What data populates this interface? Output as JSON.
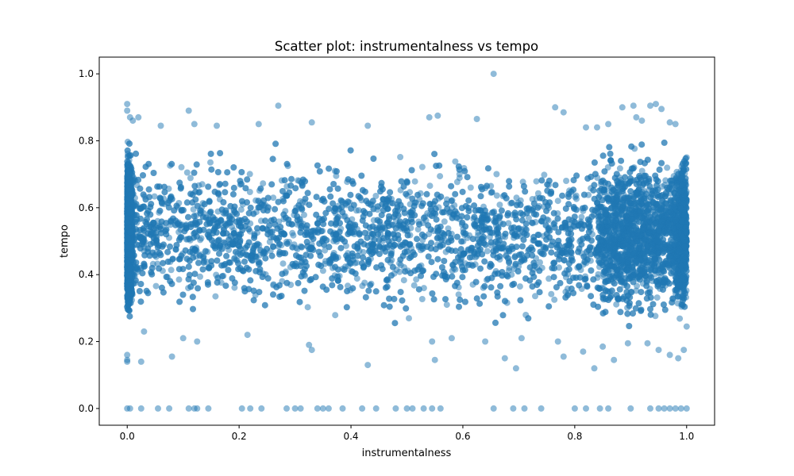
{
  "chart_data": {
    "type": "scatter",
    "title": "Scatter plot: instrumentalness vs tempo",
    "xlabel": "instrumentalness",
    "ylabel": "tempo",
    "xlim": [
      -0.05,
      1.05
    ],
    "ylim": [
      -0.05,
      1.05
    ],
    "xticks": [
      "0.0",
      "0.2",
      "0.4",
      "0.6",
      "0.8",
      "1.0"
    ],
    "yticks": [
      "0.0",
      "0.2",
      "0.4",
      "0.6",
      "0.8",
      "1.0"
    ],
    "grid": false,
    "legend": "none",
    "color": "#1f77b4",
    "alpha": 0.5,
    "series": [
      {
        "points": [
          [
            0.655,
            1.0
          ],
          [
            0.0,
            0.91
          ],
          [
            0.0,
            0.89
          ],
          [
            0.005,
            0.87
          ],
          [
            0.01,
            0.86
          ],
          [
            0.02,
            0.87
          ],
          [
            0.11,
            0.89
          ],
          [
            0.27,
            0.905
          ],
          [
            0.765,
            0.9
          ],
          [
            0.885,
            0.9
          ],
          [
            0.905,
            0.905
          ],
          [
            0.935,
            0.905
          ],
          [
            0.945,
            0.91
          ],
          [
            0.955,
            0.895
          ],
          [
            0.97,
            0.855
          ],
          [
            0.98,
            0.85
          ],
          [
            0.625,
            0.865
          ],
          [
            0.555,
            0.875
          ],
          [
            0.54,
            0.87
          ],
          [
            0.33,
            0.855
          ],
          [
            0.43,
            0.845
          ],
          [
            0.235,
            0.85
          ],
          [
            0.16,
            0.845
          ],
          [
            0.12,
            0.85
          ],
          [
            0.06,
            0.845
          ],
          [
            0.78,
            0.885
          ],
          [
            0.82,
            0.84
          ],
          [
            0.84,
            0.84
          ],
          [
            0.86,
            0.85
          ],
          [
            0.91,
            0.87
          ],
          [
            0.92,
            0.86
          ],
          [
            0.03,
            0.23
          ],
          [
            0.0,
            0.16
          ],
          [
            0.0,
            0.145
          ],
          [
            0.0,
            0.14
          ],
          [
            0.025,
            0.14
          ],
          [
            0.1,
            0.21
          ],
          [
            0.125,
            0.2
          ],
          [
            0.08,
            0.155
          ],
          [
            0.215,
            0.22
          ],
          [
            0.325,
            0.19
          ],
          [
            0.33,
            0.175
          ],
          [
            0.43,
            0.13
          ],
          [
            0.55,
            0.145
          ],
          [
            0.545,
            0.2
          ],
          [
            0.58,
            0.21
          ],
          [
            0.64,
            0.2
          ],
          [
            0.675,
            0.15
          ],
          [
            0.695,
            0.12
          ],
          [
            0.705,
            0.21
          ],
          [
            0.77,
            0.2
          ],
          [
            0.78,
            0.155
          ],
          [
            0.815,
            0.17
          ],
          [
            0.835,
            0.12
          ],
          [
            0.85,
            0.185
          ],
          [
            0.87,
            0.145
          ],
          [
            0.895,
            0.195
          ],
          [
            0.93,
            0.195
          ],
          [
            0.95,
            0.175
          ],
          [
            0.97,
            0.16
          ],
          [
            0.985,
            0.15
          ],
          [
            0.995,
            0.175
          ],
          [
            1.0,
            0.245
          ],
          [
            1.0,
            0.75
          ],
          [
            0.99,
            0.71
          ],
          [
            0.0,
            0.0
          ],
          [
            0.005,
            0.0
          ],
          [
            0.025,
            0.0
          ],
          [
            0.055,
            0.0
          ],
          [
            0.075,
            0.0
          ],
          [
            0.11,
            0.0
          ],
          [
            0.12,
            0.0
          ],
          [
            0.125,
            0.0
          ],
          [
            0.145,
            0.0
          ],
          [
            0.205,
            0.0
          ],
          [
            0.22,
            0.0
          ],
          [
            0.24,
            0.0
          ],
          [
            0.285,
            0.0
          ],
          [
            0.3,
            0.0
          ],
          [
            0.31,
            0.0
          ],
          [
            0.34,
            0.0
          ],
          [
            0.35,
            0.0
          ],
          [
            0.36,
            0.0
          ],
          [
            0.385,
            0.0
          ],
          [
            0.42,
            0.0
          ],
          [
            0.445,
            0.0
          ],
          [
            0.48,
            0.0
          ],
          [
            0.51,
            0.0
          ],
          [
            0.53,
            0.0
          ],
          [
            0.545,
            0.0
          ],
          [
            0.56,
            0.0
          ],
          [
            0.655,
            0.0
          ],
          [
            0.69,
            0.0
          ],
          [
            0.71,
            0.0
          ],
          [
            0.74,
            0.0
          ],
          [
            0.8,
            0.0
          ],
          [
            0.82,
            0.0
          ],
          [
            0.845,
            0.0
          ],
          [
            0.86,
            0.0
          ],
          [
            0.9,
            0.0
          ],
          [
            0.935,
            0.0
          ],
          [
            0.95,
            0.0
          ],
          [
            0.96,
            0.0
          ],
          [
            0.97,
            0.0
          ],
          [
            0.98,
            0.0
          ],
          [
            0.99,
            0.0
          ],
          [
            1.0,
            0.0
          ],
          [
            0.5,
            0.0
          ]
        ]
      }
    ]
  }
}
